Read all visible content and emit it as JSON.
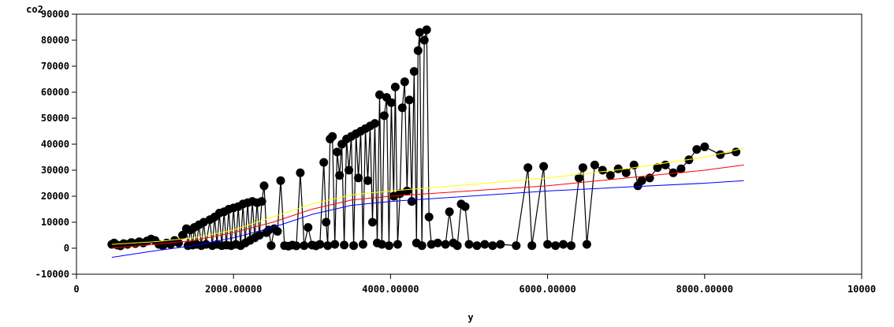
{
  "chart_data": {
    "type": "scatter",
    "title": "",
    "xlabel": "y",
    "ylabel": "co2",
    "xlim": [
      0,
      10000
    ],
    "ylim": [
      -10000,
      90000
    ],
    "x_ticks": [
      {
        "value": 0,
        "label": "0"
      },
      {
        "value": 2000,
        "label": "2000.00000"
      },
      {
        "value": 4000,
        "label": "4000.00000"
      },
      {
        "value": 6000,
        "label": "6000.00000"
      },
      {
        "value": 8000,
        "label": "8000.00000"
      },
      {
        "value": 10000,
        "label": "10000"
      }
    ],
    "y_ticks": [
      {
        "value": -10000,
        "label": "-10000"
      },
      {
        "value": 0,
        "label": "0"
      },
      {
        "value": 10000,
        "label": "10000"
      },
      {
        "value": 20000,
        "label": "20000"
      },
      {
        "value": 30000,
        "label": "30000"
      },
      {
        "value": 40000,
        "label": "40000"
      },
      {
        "value": 50000,
        "label": "50000"
      },
      {
        "value": 60000,
        "label": "60000"
      },
      {
        "value": 70000,
        "label": "70000"
      },
      {
        "value": 80000,
        "label": "80000"
      },
      {
        "value": 90000,
        "label": "90000"
      }
    ],
    "grid": false,
    "legend": "none",
    "series": [
      {
        "kind": "connected-points",
        "color": "#000000",
        "points": [
          [
            450,
            1500
          ],
          [
            480,
            2000
          ],
          [
            520,
            1200
          ],
          [
            560,
            900
          ],
          [
            600,
            1800
          ],
          [
            650,
            1500
          ],
          [
            700,
            2200
          ],
          [
            750,
            1800
          ],
          [
            800,
            2500
          ],
          [
            850,
            2000
          ],
          [
            900,
            2800
          ],
          [
            950,
            3500
          ],
          [
            1000,
            3000
          ],
          [
            1050,
            1500
          ],
          [
            1100,
            1000
          ],
          [
            1150,
            2000
          ],
          [
            1200,
            1500
          ],
          [
            1250,
            3000
          ],
          [
            1300,
            2000
          ],
          [
            1350,
            5000
          ],
          [
            1400,
            7500
          ],
          [
            1420,
            1000
          ],
          [
            1450,
            7000
          ],
          [
            1480,
            1200
          ],
          [
            1500,
            8000
          ],
          [
            1530,
            1500
          ],
          [
            1560,
            9000
          ],
          [
            1590,
            1000
          ],
          [
            1620,
            10000
          ],
          [
            1650,
            1500
          ],
          [
            1700,
            11000
          ],
          [
            1730,
            1000
          ],
          [
            1760,
            12000
          ],
          [
            1790,
            1500
          ],
          [
            1820,
            13500
          ],
          [
            1850,
            1000
          ],
          [
            1880,
            14000
          ],
          [
            1910,
            1200
          ],
          [
            1940,
            15000
          ],
          [
            1970,
            1000
          ],
          [
            2000,
            15500
          ],
          [
            2030,
            1500
          ],
          [
            2060,
            16000
          ],
          [
            2090,
            1000
          ],
          [
            2120,
            17000
          ],
          [
            2150,
            2000
          ],
          [
            2180,
            17500
          ],
          [
            2210,
            3000
          ],
          [
            2240,
            18000
          ],
          [
            2270,
            4000
          ],
          [
            2300,
            17500
          ],
          [
            2330,
            5000
          ],
          [
            2360,
            18000
          ],
          [
            2390,
            24000
          ],
          [
            2420,
            6000
          ],
          [
            2450,
            7000
          ],
          [
            2480,
            1000
          ],
          [
            2520,
            7500
          ],
          [
            2560,
            6500
          ],
          [
            2600,
            26000
          ],
          [
            2650,
            1000
          ],
          [
            2700,
            800
          ],
          [
            2750,
            1200
          ],
          [
            2800,
            900
          ],
          [
            2850,
            29000
          ],
          [
            2900,
            1000
          ],
          [
            2950,
            8000
          ],
          [
            3000,
            1200
          ],
          [
            3050,
            900
          ],
          [
            3100,
            1500
          ],
          [
            3150,
            33000
          ],
          [
            3180,
            10000
          ],
          [
            3200,
            1000
          ],
          [
            3230,
            42000
          ],
          [
            3260,
            43000
          ],
          [
            3290,
            1500
          ],
          [
            3320,
            37000
          ],
          [
            3350,
            28000
          ],
          [
            3380,
            40000
          ],
          [
            3410,
            1200
          ],
          [
            3440,
            42000
          ],
          [
            3470,
            30000
          ],
          [
            3500,
            43000
          ],
          [
            3530,
            1000
          ],
          [
            3560,
            44000
          ],
          [
            3590,
            27000
          ],
          [
            3620,
            45000
          ],
          [
            3650,
            1500
          ],
          [
            3680,
            46000
          ],
          [
            3710,
            26000
          ],
          [
            3740,
            47000
          ],
          [
            3770,
            10000
          ],
          [
            3800,
            48000
          ],
          [
            3830,
            2000
          ],
          [
            3860,
            59000
          ],
          [
            3890,
            1500
          ],
          [
            3920,
            51000
          ],
          [
            3950,
            58000
          ],
          [
            3980,
            1000
          ],
          [
            4010,
            56000
          ],
          [
            4040,
            20000
          ],
          [
            4060,
            62000
          ],
          [
            4090,
            1500
          ],
          [
            4120,
            21000
          ],
          [
            4150,
            54000
          ],
          [
            4180,
            64000
          ],
          [
            4210,
            22000
          ],
          [
            4240,
            57000
          ],
          [
            4270,
            18000
          ],
          [
            4300,
            68000
          ],
          [
            4330,
            2000
          ],
          [
            4350,
            76000
          ],
          [
            4370,
            83000
          ],
          [
            4400,
            1000
          ],
          [
            4430,
            80000
          ],
          [
            4460,
            84000
          ],
          [
            4490,
            12000
          ],
          [
            4520,
            1500
          ],
          [
            4600,
            2000
          ],
          [
            4700,
            1500
          ],
          [
            4750,
            14000
          ],
          [
            4800,
            2000
          ],
          [
            4850,
            1000
          ],
          [
            4900,
            17000
          ],
          [
            4950,
            16000
          ],
          [
            5000,
            1500
          ],
          [
            5100,
            1000
          ],
          [
            5200,
            1500
          ],
          [
            5300,
            1000
          ],
          [
            5400,
            1500
          ],
          [
            5600,
            1000
          ],
          [
            5750,
            31000
          ],
          [
            5800,
            1000
          ],
          [
            5950,
            31500
          ],
          [
            6000,
            1500
          ],
          [
            6100,
            1000
          ],
          [
            6200,
            1500
          ],
          [
            6300,
            1000
          ],
          [
            6400,
            27000
          ],
          [
            6450,
            31000
          ],
          [
            6500,
            1500
          ],
          [
            6600,
            32000
          ],
          [
            6700,
            30000
          ],
          [
            6800,
            28000
          ],
          [
            6900,
            30500
          ],
          [
            7000,
            29000
          ],
          [
            7100,
            32000
          ],
          [
            7150,
            24000
          ],
          [
            7200,
            26000
          ],
          [
            7300,
            27000
          ],
          [
            7400,
            31000
          ],
          [
            7500,
            32000
          ],
          [
            7600,
            29000
          ],
          [
            7700,
            30500
          ],
          [
            7800,
            34000
          ],
          [
            7900,
            38000
          ],
          [
            8000,
            39000
          ],
          [
            8200,
            36000
          ],
          [
            8400,
            37000
          ]
        ]
      },
      {
        "kind": "fit-line",
        "color": "#ffff00",
        "points": [
          [
            450,
            1500
          ],
          [
            1000,
            2500
          ],
          [
            1500,
            4000
          ],
          [
            2000,
            7000
          ],
          [
            2500,
            12000
          ],
          [
            3000,
            17000
          ],
          [
            3500,
            20500
          ],
          [
            4000,
            22000
          ],
          [
            5000,
            24500
          ],
          [
            6000,
            27000
          ],
          [
            7000,
            30500
          ],
          [
            8000,
            35000
          ],
          [
            8500,
            38500
          ]
        ]
      },
      {
        "kind": "fit-line",
        "color": "#ff0000",
        "points": [
          [
            450,
            0
          ],
          [
            1000,
            1500
          ],
          [
            1500,
            3000
          ],
          [
            2000,
            6000
          ],
          [
            2500,
            10000
          ],
          [
            3000,
            15000
          ],
          [
            3500,
            18500
          ],
          [
            4000,
            20000
          ],
          [
            5000,
            22000
          ],
          [
            6000,
            24000
          ],
          [
            7000,
            27000
          ],
          [
            8000,
            30000
          ],
          [
            8500,
            32000
          ]
        ]
      },
      {
        "kind": "fit-line",
        "color": "#0000ff",
        "points": [
          [
            450,
            -3500
          ],
          [
            1000,
            -1000
          ],
          [
            1500,
            1000
          ],
          [
            2000,
            4000
          ],
          [
            2500,
            8000
          ],
          [
            3000,
            13000
          ],
          [
            3500,
            16500
          ],
          [
            4000,
            18000
          ],
          [
            5000,
            20000
          ],
          [
            6000,
            22000
          ],
          [
            7000,
            23500
          ],
          [
            8000,
            25000
          ],
          [
            8500,
            26000
          ]
        ]
      }
    ]
  }
}
